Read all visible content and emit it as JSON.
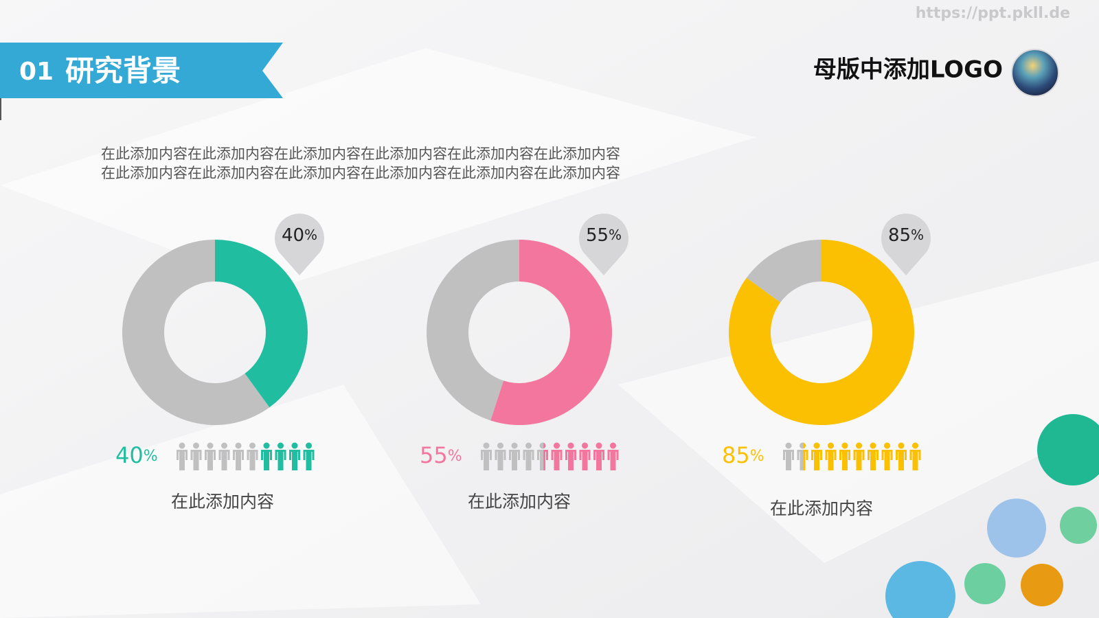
{
  "watermark": "https://ppt.pkll.de",
  "header": {
    "number": "01",
    "title": "研究背景"
  },
  "logo_text": "母版中添加LOGO",
  "paragraph": [
    "在此添加内容在此添加内容在此添加内容在此添加内容在此添加内容在此添加内容",
    "在此添加内容在此添加内容在此添加内容在此添加内容在此添加内容在此添加内容"
  ],
  "chart_data": [
    {
      "type": "donut",
      "values": [
        40
      ],
      "value_labels": [
        "40%"
      ],
      "color": "#21bda0",
      "rest_color": "#c0c0c1",
      "caption": "在此添加内容"
    },
    {
      "type": "donut",
      "values": [
        55
      ],
      "value_labels": [
        "55%"
      ],
      "color": "#f2769e",
      "rest_color": "#c0c0c1",
      "caption": "在此添加内容"
    },
    {
      "type": "donut",
      "values": [
        85
      ],
      "value_labels": [
        "85%"
      ],
      "color": "#fcc003",
      "rest_color": "#c0c0c1",
      "caption": "在此添加内容"
    }
  ]
}
